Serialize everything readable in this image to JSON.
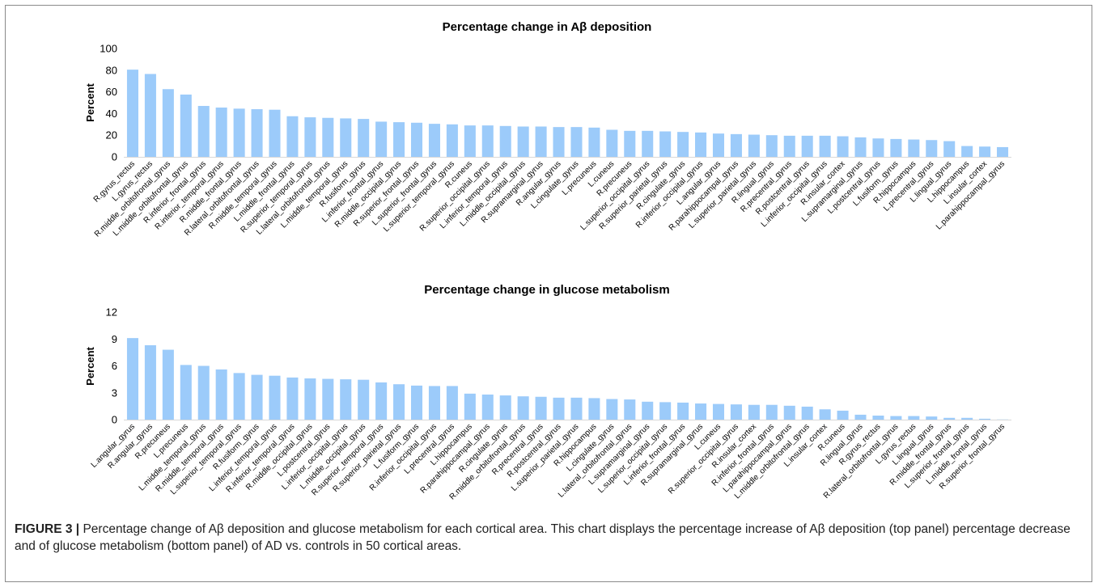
{
  "caption": {
    "label": "FIGURE 3 |",
    "text": " Percentage change of Aβ deposition and glucose metabolism for each cortical area. This chart displays the percentage increase of Aβ deposition (top panel) percentage decrease and of glucose metabolism (bottom panel) of AD vs. controls in 50 cortical areas."
  },
  "chart_data": [
    {
      "type": "bar",
      "title": "Percentage change in Aβ deposition",
      "ylabel": "Percent",
      "xlabel": "",
      "ylim": [
        0,
        100
      ],
      "yticks": [
        "0",
        "20",
        "40",
        "60",
        "80",
        "100"
      ],
      "bar_color": "#9ccbfa",
      "grid": false,
      "categories": [
        "R.gyrus_rectus",
        "L.gyrus_rectus",
        "R.middle_orbitofrontal_gyrus",
        "L.middle_orbitofrontal_gyrus",
        "R.inferior_frontal_gyrus",
        "R.inferior_temporal_gyrus",
        "R.middle_frontal_gyrus",
        "R.lateral_orbitofrontal_gyrus",
        "R.middle_temporal_gyrus",
        "L.middle_frontal_gyrus",
        "R.superior_temporal_gyrus",
        "L.lateral_orbitofrontal_gyrus",
        "L.middle_temporal_gyrus",
        "R.fusiform_gyrus",
        "L.inferior_frontal_gyrus",
        "R.middle_occipital_gyrus",
        "R.superior_frontal_gyrus",
        "L.superior_frontal_gyrus",
        "L.superior_temporal_gyrus",
        "R.cuneus",
        "R.superior_occipital_gyrus",
        "L.inferior_temporal_gyrus",
        "L.middle_occipital_gyrus",
        "R.supramarginal_gyrus",
        "R.angular_gyrus",
        "L.cingulate_gyrus",
        "L.precuneus",
        "L.cuneus",
        "R.precuneus",
        "L.superior_occipital_gyrus",
        "R.superior_parietal_gyrus",
        "R.cingulate_gyrus",
        "R.inferior_occipital_gyrus",
        "L.angular_gyrus",
        "R.parahippocampal_gyrus",
        "L.superior_parietal_gyrus",
        "R.lingual_gyrus",
        "R.precentral_gyrus",
        "R.postcentral_gyrus",
        "L.inferior_occipital_gyrus",
        "R.insular_cortex",
        "L.supramarginal_gyrus",
        "L.postcentral_gyrus",
        "L.fusiform_gyrus",
        "R.hippocampus",
        "L.precentral_gyrus",
        "L.lingual_gyrus",
        "L.hippocampus",
        "L.insular_cortex",
        "L.parahippocampal_gyrus"
      ],
      "values": [
        80.5,
        76.5,
        62.5,
        57.5,
        47,
        45.5,
        44.5,
        44,
        43.5,
        37.5,
        36.5,
        36,
        35.5,
        35,
        32.5,
        32,
        31.5,
        30.5,
        30,
        29,
        29,
        28.5,
        28,
        28,
        27.5,
        27.5,
        27,
        25,
        24,
        24,
        23.5,
        23,
        22.5,
        21.5,
        21,
        20.5,
        20,
        19.5,
        19.5,
        19.5,
        19,
        18,
        17,
        16.5,
        16,
        15.5,
        14.5,
        10,
        9.5,
        9
      ]
    },
    {
      "type": "bar",
      "title": "Percentage change in glucose metabolism",
      "ylabel": "Percent",
      "xlabel": "",
      "ylim": [
        0,
        12
      ],
      "yticks": [
        "0",
        "3",
        "6",
        "9",
        "12"
      ],
      "bar_color": "#9ccbfa",
      "grid": false,
      "categories": [
        "L.angular_gyrus",
        "R.angular_gyrus",
        "R.precuneus",
        "L.precuneus",
        "L.middle_temporal_gyrus",
        "R.middle_temporal_gyrus",
        "L.superior_temporal_gyrus",
        "R.fusiform_gyrus",
        "L.inferior_temporal_gyrus",
        "R.inferior_temporal_gyrus",
        "R.middle_occipital_gyrus",
        "L.postcentral_gyrus",
        "L.inferior_occipital_gyrus",
        "L.middle_occipital_gyrus",
        "R.superior_temporal_gyrus",
        "R.superior_parietal_gyrus",
        "L.fusiform_gyrus",
        "R.inferior_occipital_gyrus",
        "L.precentral_gyrus",
        "L.hippocampus",
        "R.parahippocampal_gyrus",
        "R.cingulate_gyrus",
        "R.middle_orbitofrontal_gyrus",
        "R.precentral_gyrus",
        "R.postcentral_gyrus",
        "L.superior_parietal_gyrus",
        "R.hippocampus",
        "L.cingulate_gyrus",
        "L.lateral_orbitofrontal_gyrus",
        "L.supramarginal_gyrus",
        "L.superior_occipital_gyrus",
        "L.inferior_frontal_gyrus",
        "R.supramarginal_gyrus",
        "L.cuneus",
        "R.superior_occipital_gyrus",
        "R.insular_cortex",
        "R.inferior_frontal_gyrus",
        "L.parahippocampal_gyrus",
        "L.middle_orbitofrontal_gyrus",
        "L.insular_cortex",
        "R.cuneus",
        "R.lingual_gyrus",
        "R.gyrus_rectus",
        "R.lateral_orbitofrontal_gyrus",
        "L.gyrus_rectus",
        "L.lingual_gyrus",
        "R.middle_frontal_gyrus",
        "L.superior_frontal_gyrus",
        "L.middle_frontal_gyrus",
        "R.superior_frontal_gyrus"
      ],
      "values": [
        9.1,
        8.3,
        7.8,
        6.1,
        6.0,
        5.6,
        5.2,
        5.0,
        4.9,
        4.7,
        4.6,
        4.55,
        4.5,
        4.45,
        4.15,
        3.95,
        3.8,
        3.75,
        3.75,
        2.9,
        2.8,
        2.7,
        2.6,
        2.55,
        2.45,
        2.45,
        2.4,
        2.3,
        2.25,
        2.0,
        1.95,
        1.9,
        1.8,
        1.75,
        1.7,
        1.65,
        1.65,
        1.55,
        1.45,
        1.15,
        1.0,
        0.55,
        0.45,
        0.4,
        0.4,
        0.35,
        0.2,
        0.2,
        0.1,
        0.02
      ]
    }
  ]
}
